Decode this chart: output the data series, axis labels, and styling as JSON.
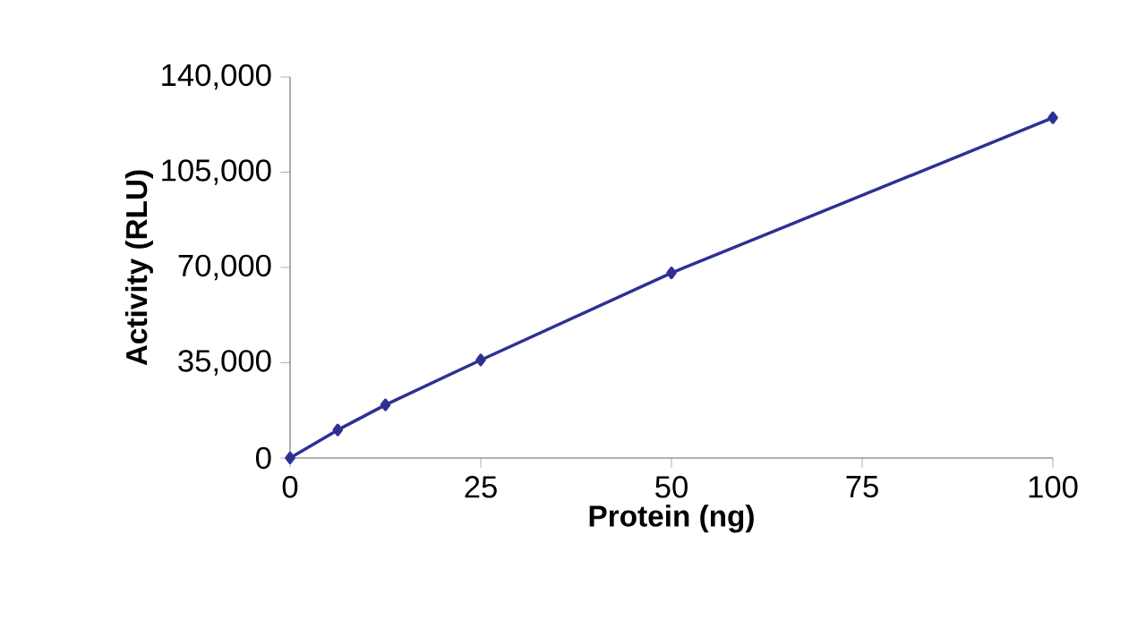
{
  "chart_data": {
    "type": "line",
    "xlabel": "Protein (ng)",
    "ylabel": "Activity (RLU)",
    "x": [
      0,
      6.25,
      12.5,
      25,
      50,
      100
    ],
    "series": [
      {
        "color": "#2e3192",
        "values": [
          0,
          10300,
          19500,
          36000,
          68000,
          125000
        ]
      }
    ],
    "xlim": [
      0,
      100
    ],
    "xticks": [
      0,
      25,
      50,
      75,
      100
    ],
    "ylim": [
      0,
      140000
    ],
    "yticks": [
      {
        "value": 0,
        "label": "0"
      },
      {
        "value": 35000,
        "label": "35,000"
      },
      {
        "value": 70000,
        "label": "70,000"
      },
      {
        "value": 105000,
        "label": "105,000"
      },
      {
        "value": 140000,
        "label": "140,000"
      }
    ],
    "grid": false,
    "marker": "diamond",
    "line_style": "solid"
  }
}
